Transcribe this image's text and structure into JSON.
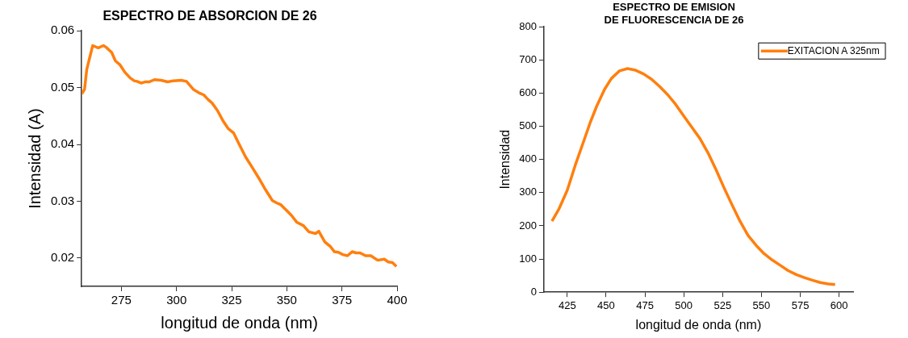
{
  "chart_data": [
    {
      "type": "line",
      "title": "ESPECTRO DE ABSORCION DE 26",
      "xlabel": "longitud de onda (nm)",
      "ylabel": "Intensidad (A)",
      "xlim": [
        257,
        400
      ],
      "xticks": [
        275,
        300,
        325,
        350,
        375,
        400
      ],
      "ylim": [
        0.015,
        0.06
      ],
      "yticks": [
        0.02,
        0.03,
        0.04,
        0.05,
        0.06
      ],
      "grid": false,
      "legend": false,
      "marker": "none",
      "line_style": "solid",
      "x": [
        257.1,
        258.3,
        259.3,
        262,
        264.5,
        266.9,
        268.1,
        270.6,
        272.3,
        274.4,
        276.6,
        279,
        280.8,
        282.1,
        283.9,
        285.7,
        287.5,
        290,
        293,
        296,
        298.5,
        302.1,
        304.5,
        307.6,
        310.6,
        312.4,
        314.3,
        316.1,
        318.5,
        321,
        323.4,
        325.9,
        328.3,
        331.3,
        334.4,
        337.4,
        339.9,
        343.5,
        345.4,
        347.2,
        349.6,
        352.1,
        354.5,
        357.5,
        360,
        363,
        364.5,
        365.5,
        367.3,
        369.8,
        371.6,
        373.4,
        375.4,
        377.5,
        379.6,
        381.4,
        383.2,
        385.7,
        388.1,
        391.2,
        394.2,
        396,
        397.9,
        399.7
      ],
      "series": [
        {
          "color": "#ff7f0e",
          "values": [
            0.0489,
            0.0497,
            0.0532,
            0.0574,
            0.057,
            0.0574,
            0.0571,
            0.0562,
            0.0547,
            0.054,
            0.0527,
            0.0517,
            0.0512,
            0.0511,
            0.0508,
            0.051,
            0.051,
            0.0514,
            0.0513,
            0.051,
            0.0512,
            0.0513,
            0.0511,
            0.0497,
            0.049,
            0.0487,
            0.0479,
            0.0473,
            0.046,
            0.0442,
            0.0428,
            0.042,
            0.0401,
            0.0378,
            0.0359,
            0.034,
            0.0323,
            0.0301,
            0.0297,
            0.0294,
            0.0285,
            0.0275,
            0.0263,
            0.0257,
            0.0246,
            0.0243,
            0.0247,
            0.024,
            0.0228,
            0.022,
            0.0211,
            0.021,
            0.0206,
            0.0204,
            0.0211,
            0.0209,
            0.0209,
            0.0204,
            0.0204,
            0.0196,
            0.0198,
            0.0193,
            0.0192,
            0.0185
          ]
        }
      ]
    },
    {
      "type": "line",
      "title": "ESPECTRO DE EMISION\nDE FLUORESCENCIA DE 26",
      "xlabel": "longitud de onda (nm)",
      "ylabel": "Intensidad",
      "xlim": [
        410,
        609
      ],
      "xticks": [
        425,
        450,
        475,
        500,
        525,
        550,
        575,
        600
      ],
      "ylim": [
        0,
        800
      ],
      "yticks": [
        0,
        100,
        200,
        300,
        400,
        500,
        600,
        700,
        800
      ],
      "grid": false,
      "legend": "top right",
      "marker": "none",
      "line_style": "solid",
      "x": [
        415.2,
        419.8,
        425,
        430.2,
        435.3,
        439.7,
        444,
        449.1,
        453.4,
        458.6,
        463.8,
        469,
        474.1,
        479.3,
        484.5,
        489.7,
        494.8,
        500,
        505.2,
        510.3,
        515.5,
        520.7,
        525.9,
        531,
        536.2,
        541.4,
        546.6,
        551.7,
        556.9,
        562.1,
        567.2,
        572.4,
        577.6,
        582.8,
        587.9,
        593.1,
        597.4
      ],
      "series": [
        {
          "name": "EXITACION A 325nm",
          "color": "#ff7f0e",
          "values": [
            214,
            252,
            307,
            383,
            451,
            510,
            561,
            612,
            644,
            667,
            674,
            669,
            658,
            642,
            620,
            595,
            566,
            531,
            497,
            464,
            421,
            370,
            315,
            264,
            214,
            171,
            141,
            116,
            97,
            81,
            65,
            53,
            44,
            36,
            29,
            25,
            23
          ]
        }
      ]
    }
  ]
}
